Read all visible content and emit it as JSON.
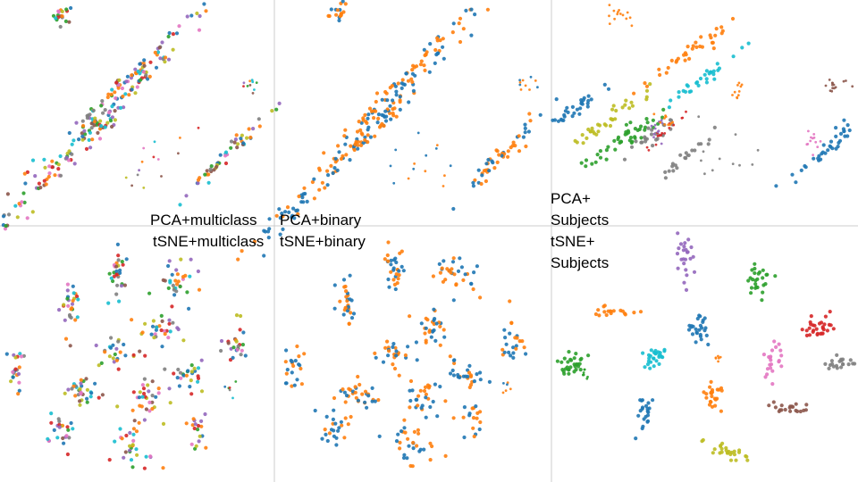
{
  "palettes": {
    "multiclass": [
      "#1f77b4",
      "#ff7f0e",
      "#2ca02c",
      "#d62728",
      "#9467bd",
      "#8c564b",
      "#e377c2",
      "#7f7f7f",
      "#bcbd22",
      "#17becf"
    ],
    "binary": [
      "#1f77b4",
      "#ff7f0e"
    ],
    "subjects": [
      "#1f77b4",
      "#ff7f0e",
      "#2ca02c",
      "#d62728",
      "#9467bd",
      "#8c564b",
      "#e377c2",
      "#7f7f7f",
      "#bcbd22",
      "#17becf"
    ]
  },
  "chart_data": [
    {
      "type": "scatter",
      "label": "PCA+multiclass",
      "method": "PCA",
      "coloring": "multiclass",
      "xlim": [
        0,
        1
      ],
      "ylim": [
        0,
        1
      ],
      "clusters": [
        {
          "x": 0.22,
          "y": 0.96,
          "sx": 0.02,
          "sy": 0.03,
          "n": 18,
          "color": "mixed"
        },
        {
          "x": 0.48,
          "y": 0.68,
          "sx": 0.015,
          "sy": 0.2,
          "angle": -40,
          "n": 70,
          "color": "mixed"
        },
        {
          "x": 0.28,
          "y": 0.35,
          "sx": 0.02,
          "sy": 0.32,
          "angle": -38,
          "n": 150,
          "color": "mixed"
        },
        {
          "x": 0.83,
          "y": 0.3,
          "sx": 0.015,
          "sy": 0.14,
          "angle": -38,
          "n": 50,
          "color": "mixed"
        },
        {
          "x": 0.92,
          "y": 0.63,
          "sx": 0.02,
          "sy": 0.02,
          "n": 10,
          "color": "mixed"
        },
        {
          "x": 0.55,
          "y": 0.28,
          "sx": 0.08,
          "sy": 0.08,
          "n": 14,
          "color": "mixed"
        }
      ]
    },
    {
      "type": "scatter",
      "label": "PCA+binary",
      "method": "PCA",
      "coloring": "binary",
      "xlim": [
        0,
        1
      ],
      "ylim": [
        0,
        1
      ],
      "clusters": [
        {
          "x": 0.22,
          "y": 0.96,
          "sx": 0.02,
          "sy": 0.03,
          "n": 18,
          "color": "mixed"
        },
        {
          "x": 0.48,
          "y": 0.68,
          "sx": 0.015,
          "sy": 0.2,
          "angle": -40,
          "n": 70,
          "color": "mixed"
        },
        {
          "x": 0.28,
          "y": 0.35,
          "sx": 0.02,
          "sy": 0.32,
          "angle": -38,
          "n": 150,
          "color": "mixed"
        },
        {
          "x": 0.83,
          "y": 0.3,
          "sx": 0.015,
          "sy": 0.14,
          "angle": -38,
          "n": 50,
          "color": "mixed"
        },
        {
          "x": 0.92,
          "y": 0.63,
          "sx": 0.02,
          "sy": 0.02,
          "n": 10,
          "color": "mixed"
        },
        {
          "x": 0.55,
          "y": 0.28,
          "sx": 0.08,
          "sy": 0.08,
          "n": 14,
          "color": "mixed"
        }
      ]
    },
    {
      "type": "scatter",
      "label": "PCA+\nSubjects",
      "method": "PCA",
      "coloring": "subjects",
      "xlim": [
        0,
        1
      ],
      "ylim": [
        0,
        1
      ],
      "clusters": [
        {
          "x": 0.22,
          "y": 0.94,
          "sx": 0.02,
          "sy": 0.03,
          "n": 14,
          "color": 1
        },
        {
          "x": 0.45,
          "y": 0.78,
          "sx": 0.015,
          "sy": 0.1,
          "angle": -45,
          "n": 35,
          "color": 1
        },
        {
          "x": 0.52,
          "y": 0.68,
          "sx": 0.012,
          "sy": 0.08,
          "angle": -45,
          "n": 30,
          "color": 9
        },
        {
          "x": 0.62,
          "y": 0.6,
          "sx": 0.015,
          "sy": 0.03,
          "n": 10,
          "color": 1
        },
        {
          "x": 0.11,
          "y": 0.56,
          "sx": 0.012,
          "sy": 0.09,
          "angle": -45,
          "n": 30,
          "color": 0
        },
        {
          "x": 0.18,
          "y": 0.47,
          "sx": 0.015,
          "sy": 0.1,
          "angle": -42,
          "n": 35,
          "color": 8
        },
        {
          "x": 0.23,
          "y": 0.38,
          "sx": 0.02,
          "sy": 0.1,
          "angle": -42,
          "n": 45,
          "color": 2
        },
        {
          "x": 0.33,
          "y": 0.4,
          "sx": 0.015,
          "sy": 0.06,
          "angle": -40,
          "n": 25,
          "color": 7
        },
        {
          "x": 0.36,
          "y": 0.4,
          "sx": 0.012,
          "sy": 0.05,
          "angle": -40,
          "n": 16,
          "color": 3
        },
        {
          "x": 0.34,
          "y": 0.44,
          "sx": 0.01,
          "sy": 0.04,
          "n": 12,
          "color": 4
        },
        {
          "x": 0.43,
          "y": 0.28,
          "sx": 0.012,
          "sy": 0.07,
          "angle": -40,
          "n": 20,
          "color": 7
        },
        {
          "x": 0.37,
          "y": 0.47,
          "sx": 0.02,
          "sy": 0.02,
          "n": 10,
          "color": 1
        },
        {
          "x": 0.9,
          "y": 0.32,
          "sx": 0.015,
          "sy": 0.12,
          "angle": -38,
          "n": 40,
          "color": 0
        },
        {
          "x": 0.86,
          "y": 0.36,
          "sx": 0.012,
          "sy": 0.03,
          "n": 12,
          "color": 6
        },
        {
          "x": 0.94,
          "y": 0.63,
          "sx": 0.02,
          "sy": 0.015,
          "n": 14,
          "color": 5
        },
        {
          "x": 0.55,
          "y": 0.28,
          "sx": 0.08,
          "sy": 0.08,
          "n": 12,
          "color": 7
        }
      ]
    },
    {
      "type": "scatter",
      "label": "tSNE+multiclass",
      "method": "tSNE",
      "coloring": "multiclass",
      "xlim": [
        0,
        1
      ],
      "ylim": [
        0,
        1
      ],
      "clusters": [
        {
          "x": 0.43,
          "y": 0.85,
          "sx": 0.02,
          "sy": 0.05,
          "n": 30,
          "color": "mixed"
        },
        {
          "x": 0.65,
          "y": 0.82,
          "sx": 0.035,
          "sy": 0.04,
          "n": 32,
          "color": "mixed"
        },
        {
          "x": 0.25,
          "y": 0.72,
          "sx": 0.02,
          "sy": 0.05,
          "n": 28,
          "color": "mixed"
        },
        {
          "x": 0.58,
          "y": 0.61,
          "sx": 0.035,
          "sy": 0.045,
          "n": 30,
          "color": "mixed"
        },
        {
          "x": 0.87,
          "y": 0.55,
          "sx": 0.025,
          "sy": 0.05,
          "n": 24,
          "color": "mixed"
        },
        {
          "x": 0.05,
          "y": 0.45,
          "sx": 0.02,
          "sy": 0.05,
          "n": 22,
          "color": "mixed"
        },
        {
          "x": 0.42,
          "y": 0.5,
          "sx": 0.04,
          "sy": 0.035,
          "n": 26,
          "color": "mixed"
        },
        {
          "x": 0.7,
          "y": 0.42,
          "sx": 0.04,
          "sy": 0.035,
          "n": 28,
          "color": "mixed"
        },
        {
          "x": 0.3,
          "y": 0.34,
          "sx": 0.05,
          "sy": 0.025,
          "angle": -20,
          "n": 32,
          "color": "mixed"
        },
        {
          "x": 0.54,
          "y": 0.32,
          "sx": 0.035,
          "sy": 0.04,
          "n": 28,
          "color": "mixed"
        },
        {
          "x": 0.85,
          "y": 0.36,
          "sx": 0.015,
          "sy": 0.015,
          "n": 6,
          "color": "mixed"
        },
        {
          "x": 0.22,
          "y": 0.2,
          "sx": 0.035,
          "sy": 0.035,
          "n": 24,
          "color": "mixed"
        },
        {
          "x": 0.72,
          "y": 0.21,
          "sx": 0.02,
          "sy": 0.04,
          "n": 18,
          "color": "mixed"
        },
        {
          "x": 0.49,
          "y": 0.14,
          "sx": 0.04,
          "sy": 0.05,
          "n": 32,
          "color": "mixed"
        }
      ]
    },
    {
      "type": "scatter",
      "label": "tSNE+binary",
      "method": "tSNE",
      "coloring": "binary",
      "xlim": [
        0,
        1
      ],
      "ylim": [
        0,
        1
      ],
      "clusters": [
        {
          "x": 0.43,
          "y": 0.85,
          "sx": 0.02,
          "sy": 0.05,
          "n": 30,
          "color": "mixed"
        },
        {
          "x": 0.65,
          "y": 0.82,
          "sx": 0.035,
          "sy": 0.04,
          "n": 32,
          "color": "mixed"
        },
        {
          "x": 0.25,
          "y": 0.72,
          "sx": 0.02,
          "sy": 0.05,
          "n": 28,
          "color": "mixed"
        },
        {
          "x": 0.58,
          "y": 0.61,
          "sx": 0.035,
          "sy": 0.045,
          "n": 30,
          "color": "mixed"
        },
        {
          "x": 0.87,
          "y": 0.55,
          "sx": 0.025,
          "sy": 0.05,
          "n": 24,
          "color": "mixed"
        },
        {
          "x": 0.05,
          "y": 0.45,
          "sx": 0.02,
          "sy": 0.05,
          "n": 22,
          "color": "mixed"
        },
        {
          "x": 0.42,
          "y": 0.5,
          "sx": 0.04,
          "sy": 0.035,
          "n": 26,
          "color": "mixed"
        },
        {
          "x": 0.7,
          "y": 0.42,
          "sx": 0.04,
          "sy": 0.035,
          "n": 28,
          "color": "mixed"
        },
        {
          "x": 0.3,
          "y": 0.34,
          "sx": 0.05,
          "sy": 0.025,
          "angle": -20,
          "n": 32,
          "color": "mixed"
        },
        {
          "x": 0.54,
          "y": 0.32,
          "sx": 0.035,
          "sy": 0.04,
          "n": 28,
          "color": "mixed"
        },
        {
          "x": 0.85,
          "y": 0.36,
          "sx": 0.015,
          "sy": 0.015,
          "n": 6,
          "color": "mixed"
        },
        {
          "x": 0.22,
          "y": 0.2,
          "sx": 0.035,
          "sy": 0.035,
          "n": 24,
          "color": "mixed"
        },
        {
          "x": 0.72,
          "y": 0.21,
          "sx": 0.02,
          "sy": 0.04,
          "n": 18,
          "color": "mixed"
        },
        {
          "x": 0.49,
          "y": 0.14,
          "sx": 0.04,
          "sy": 0.05,
          "n": 32,
          "color": "mixed"
        }
      ]
    },
    {
      "type": "scatter",
      "label": "tSNE+\nSubjects",
      "method": "tSNE",
      "coloring": "subjects",
      "xlim": [
        0,
        1
      ],
      "ylim": [
        0,
        1
      ],
      "clusters": [
        {
          "x": 0.44,
          "y": 0.9,
          "sx": 0.015,
          "sy": 0.05,
          "n": 24,
          "color": 4
        },
        {
          "x": 0.68,
          "y": 0.8,
          "sx": 0.02,
          "sy": 0.035,
          "n": 26,
          "color": 2
        },
        {
          "x": 0.2,
          "y": 0.68,
          "sx": 0.04,
          "sy": 0.01,
          "n": 18,
          "color": 1
        },
        {
          "x": 0.49,
          "y": 0.62,
          "sx": 0.025,
          "sy": 0.03,
          "n": 26,
          "color": 0
        },
        {
          "x": 0.88,
          "y": 0.63,
          "sx": 0.025,
          "sy": 0.03,
          "n": 30,
          "color": 3
        },
        {
          "x": 0.06,
          "y": 0.46,
          "sx": 0.025,
          "sy": 0.025,
          "n": 30,
          "color": 2
        },
        {
          "x": 0.33,
          "y": 0.49,
          "sx": 0.02,
          "sy": 0.025,
          "n": 28,
          "color": 9
        },
        {
          "x": 0.55,
          "y": 0.49,
          "sx": 0.01,
          "sy": 0.01,
          "n": 6,
          "color": 1
        },
        {
          "x": 0.73,
          "y": 0.48,
          "sx": 0.015,
          "sy": 0.04,
          "n": 22,
          "color": 6
        },
        {
          "x": 0.96,
          "y": 0.46,
          "sx": 0.025,
          "sy": 0.015,
          "n": 20,
          "color": 7
        },
        {
          "x": 0.1,
          "y": 0.42,
          "sx": 0.01,
          "sy": 0.01,
          "n": 8,
          "color": 2
        },
        {
          "x": 0.53,
          "y": 0.34,
          "sx": 0.015,
          "sy": 0.035,
          "n": 24,
          "color": 1
        },
        {
          "x": 0.79,
          "y": 0.28,
          "sx": 0.04,
          "sy": 0.01,
          "n": 20,
          "color": 5
        },
        {
          "x": 0.3,
          "y": 0.24,
          "sx": 0.015,
          "sy": 0.045,
          "n": 22,
          "color": 0
        },
        {
          "x": 0.58,
          "y": 0.1,
          "sx": 0.04,
          "sy": 0.015,
          "angle": -20,
          "n": 26,
          "color": 8
        }
      ]
    }
  ]
}
